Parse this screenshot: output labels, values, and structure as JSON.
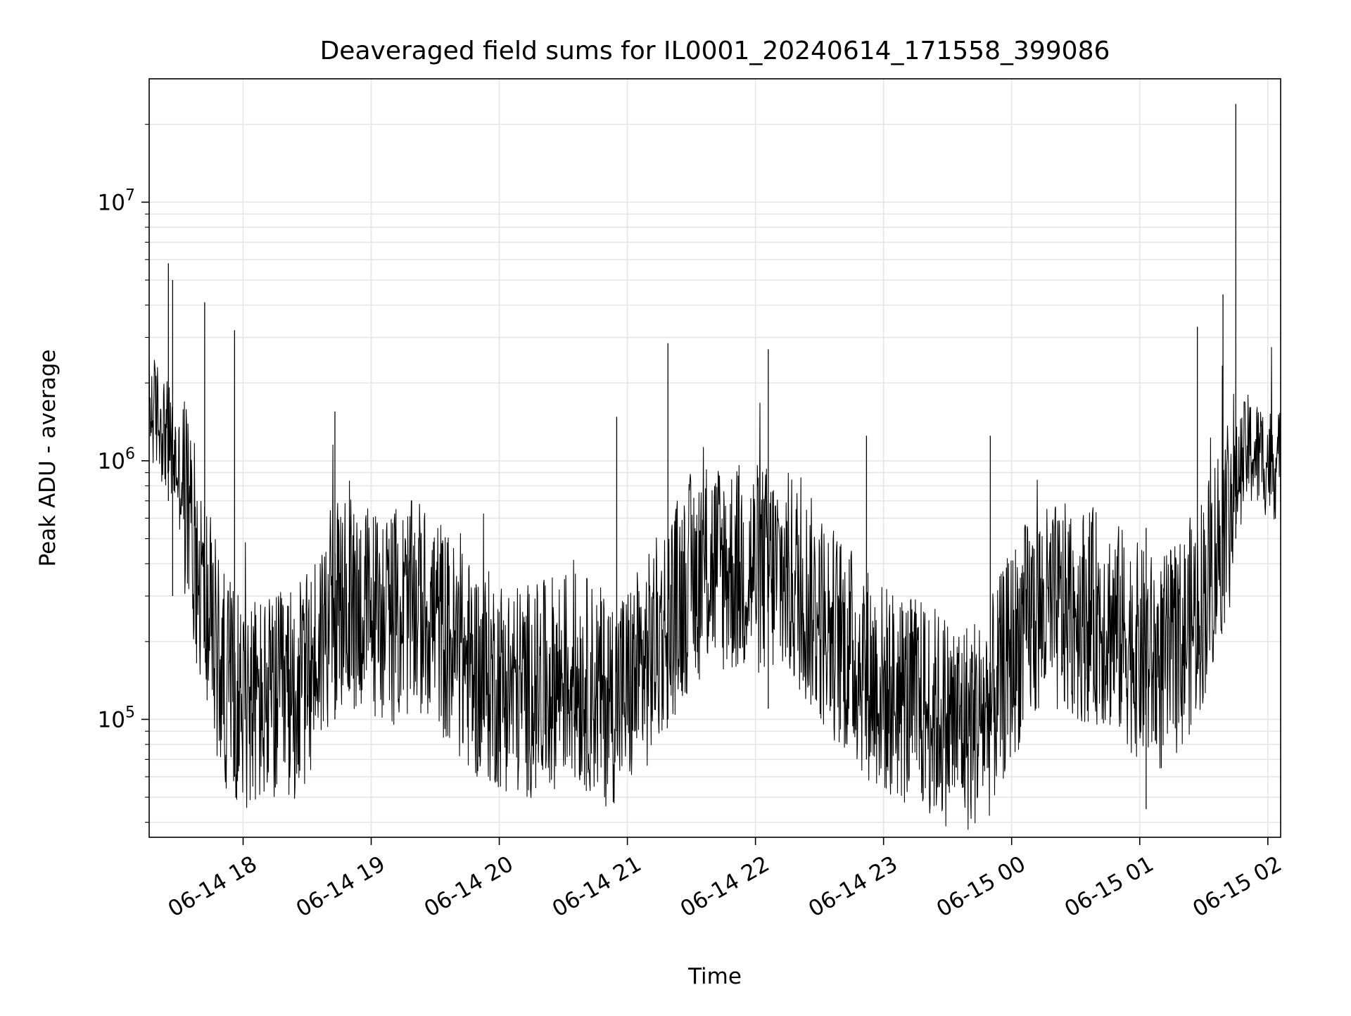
{
  "chart_data": {
    "type": "line",
    "title": "Deaveraged field sums for IL0001_20240614_171558_399086",
    "xlabel": "Time",
    "ylabel": "Peak ADU - average",
    "yscale": "log",
    "grid": true,
    "line_color": "#000000",
    "grid_color": "#e6e6e6",
    "xlim": [
      "2024-06-14 17:16",
      "2024-06-15 02:06"
    ],
    "ylim": [
      35000,
      30000000
    ],
    "x_ticks": [
      {
        "value": "2024-06-14 18:00",
        "label": "06-14 18"
      },
      {
        "value": "2024-06-14 19:00",
        "label": "06-14 19"
      },
      {
        "value": "2024-06-14 20:00",
        "label": "06-14 20"
      },
      {
        "value": "2024-06-14 21:00",
        "label": "06-14 21"
      },
      {
        "value": "2024-06-14 22:00",
        "label": "06-14 22"
      },
      {
        "value": "2024-06-14 23:00",
        "label": "06-14 23"
      },
      {
        "value": "2024-06-15 00:00",
        "label": "06-15 00"
      },
      {
        "value": "2024-06-15 01:00",
        "label": "06-15 01"
      },
      {
        "value": "2024-06-15 02:00",
        "label": "06-15 02"
      }
    ],
    "y_ticks": [
      {
        "value": 100000,
        "base": "10",
        "exp": "5"
      },
      {
        "value": 1000000,
        "base": "10",
        "exp": "6"
      },
      {
        "value": 10000000,
        "base": "10",
        "exp": "7"
      }
    ],
    "series": [
      {
        "x": [
          "2024-06-14 17:16",
          "2024-06-14 17:20",
          "2024-06-14 17:25",
          "2024-06-14 17:30",
          "2024-06-14 17:35",
          "2024-06-14 17:40",
          "2024-06-14 17:45",
          "2024-06-14 17:50",
          "2024-06-14 17:55",
          "2024-06-14 18:00",
          "2024-06-14 18:10",
          "2024-06-14 18:20",
          "2024-06-14 18:30",
          "2024-06-14 18:40",
          "2024-06-14 18:50",
          "2024-06-14 19:00",
          "2024-06-14 19:10",
          "2024-06-14 19:20",
          "2024-06-14 19:30",
          "2024-06-14 19:40",
          "2024-06-14 19:50",
          "2024-06-14 20:00",
          "2024-06-14 20:10",
          "2024-06-14 20:20",
          "2024-06-14 20:30",
          "2024-06-14 20:40",
          "2024-06-14 20:50",
          "2024-06-14 21:00",
          "2024-06-14 21:10",
          "2024-06-14 21:20",
          "2024-06-14 21:30",
          "2024-06-14 21:40",
          "2024-06-14 21:50",
          "2024-06-14 22:00",
          "2024-06-14 22:10",
          "2024-06-14 22:20",
          "2024-06-14 22:30",
          "2024-06-14 22:40",
          "2024-06-14 22:50",
          "2024-06-14 23:00",
          "2024-06-14 23:10",
          "2024-06-14 23:20",
          "2024-06-14 23:30",
          "2024-06-14 23:40",
          "2024-06-14 23:50",
          "2024-06-15 00:00",
          "2024-06-15 00:10",
          "2024-06-15 00:20",
          "2024-06-15 00:30",
          "2024-06-15 00:40",
          "2024-06-15 00:50",
          "2024-06-15 01:00",
          "2024-06-15 01:10",
          "2024-06-15 01:20",
          "2024-06-15 01:30",
          "2024-06-15 01:40",
          "2024-06-15 01:50",
          "2024-06-15 02:00",
          "2024-06-15 02:06"
        ],
        "values": [
          1600000,
          1500000,
          1200000,
          900000,
          600000,
          350000,
          230000,
          150000,
          130000,
          120000,
          115000,
          120000,
          140000,
          250000,
          280000,
          260000,
          250000,
          270000,
          250000,
          180000,
          150000,
          140000,
          130000,
          130000,
          150000,
          140000,
          120000,
          130000,
          170000,
          250000,
          350000,
          400000,
          380000,
          380000,
          370000,
          330000,
          250000,
          200000,
          160000,
          130000,
          120000,
          110000,
          100000,
          95000,
          110000,
          180000,
          250000,
          260000,
          260000,
          250000,
          220000,
          180000,
          160000,
          200000,
          300000,
          600000,
          1100000,
          1000000,
          950000
        ]
      }
    ],
    "spikes": [
      {
        "x": "2024-06-14 17:25",
        "low": 700000,
        "high": 5800000
      },
      {
        "x": "2024-06-14 17:27",
        "low": 300000,
        "high": 5000000
      },
      {
        "x": "2024-06-14 17:42",
        "low": 200000,
        "high": 4100000
      },
      {
        "x": "2024-06-14 17:56",
        "low": 60000,
        "high": 3200000
      },
      {
        "x": "2024-06-14 18:43",
        "low": 100000,
        "high": 1550000
      },
      {
        "x": "2024-06-14 20:55",
        "low": 90000,
        "high": 1480000
      },
      {
        "x": "2024-06-14 21:19",
        "low": 100000,
        "high": 2850000
      },
      {
        "x": "2024-06-14 22:06",
        "low": 110000,
        "high": 2700000
      },
      {
        "x": "2024-06-14 22:52",
        "low": 70000,
        "high": 1250000
      },
      {
        "x": "2024-06-14 23:50",
        "low": 90000,
        "high": 1250000
      },
      {
        "x": "2024-06-15 01:03",
        "low": 45000,
        "high": 550000
      },
      {
        "x": "2024-06-15 01:27",
        "low": 150000,
        "high": 3300000
      },
      {
        "x": "2024-06-15 01:39",
        "low": 300000,
        "high": 4400000
      },
      {
        "x": "2024-06-15 01:45",
        "low": 500000,
        "high": 24000000
      }
    ]
  }
}
